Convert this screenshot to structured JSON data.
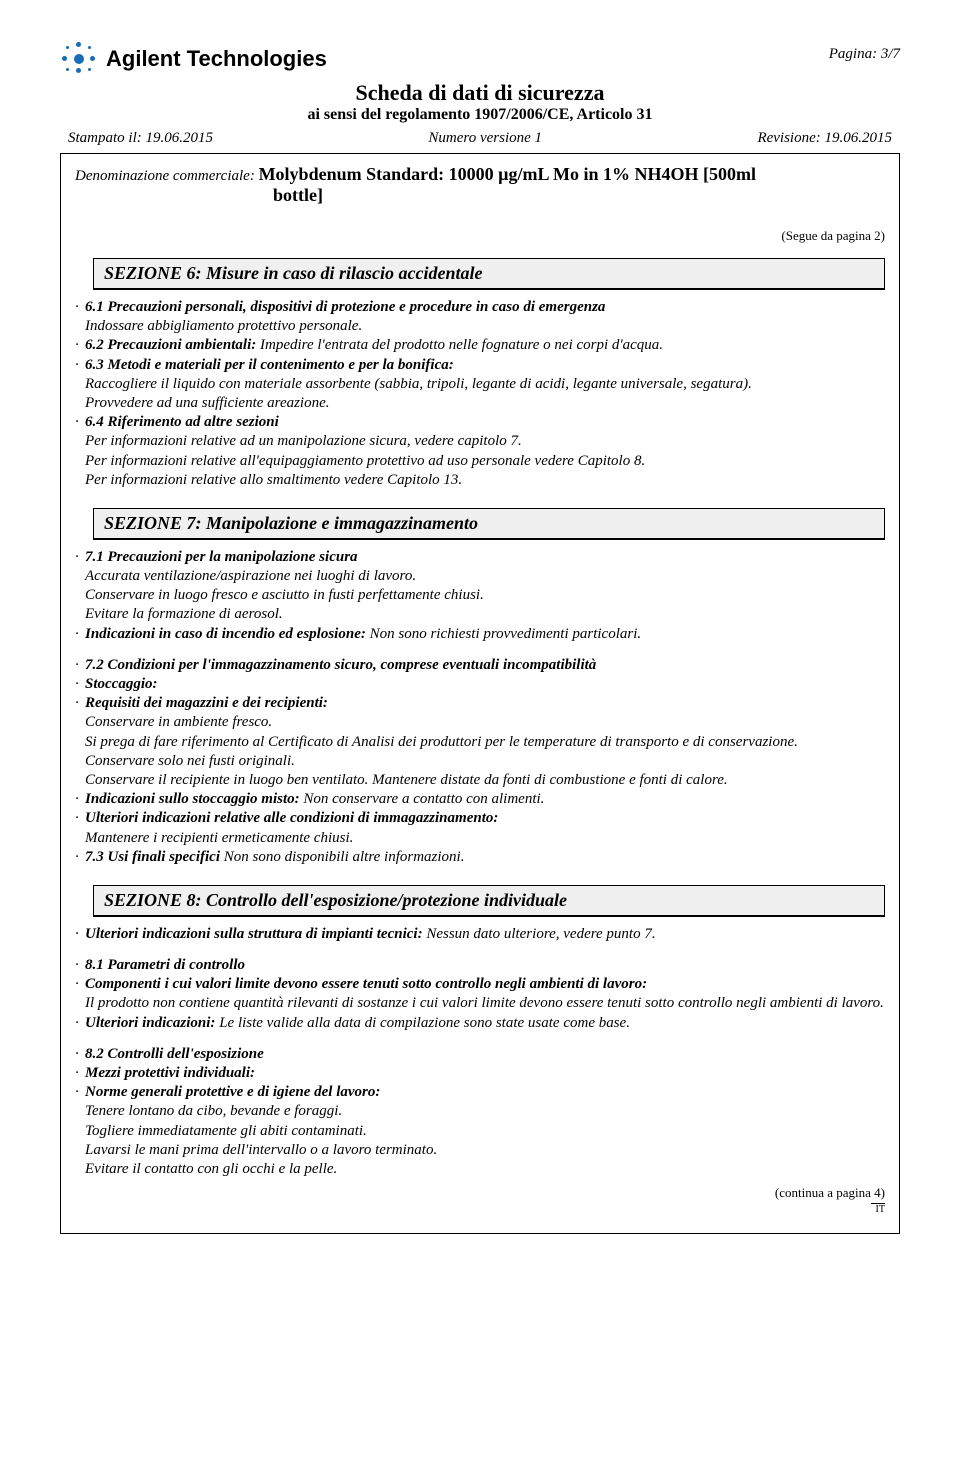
{
  "header": {
    "company": "Agilent Technologies",
    "pagina": "Pagina: 3/7",
    "title": "Scheda di dati di sicurezza",
    "subtitle": "ai sensi del regolamento 1907/2006/CE, Articolo 31",
    "stampato_label": "Stampato il: 19.06.2015",
    "versione": "Numero versione 1",
    "revisione": "Revisione: 19.06.2015"
  },
  "denom": {
    "label": "Denominazione commerciale:",
    "value1": "Molybdenum Standard: 10000 µg/mL Mo in 1% NH4OH [500ml",
    "value2": "bottle]"
  },
  "segue": "(Segue da pagina 2)",
  "s6": {
    "title": "SEZIONE 6: Misure in caso di rilascio accidentale",
    "p1_label": "6.1 Precauzioni personali, dispositivi di protezione e procedure in caso di emergenza",
    "p1_text": "Indossare abbigliamento protettivo personale.",
    "p2_label": "6.2 Precauzioni ambientali:",
    "p2_text": "Impedire l'entrata del prodotto nelle fognature o nei corpi d'acqua.",
    "p3_label": "6.3 Metodi e materiali per il contenimento e per la bonifica:",
    "p3_text1": "Raccogliere il liquido con materiale assorbente (sabbia, tripoli, legante di acidi, legante universale, segatura).",
    "p3_text2": "Provvedere ad una sufficiente areazione.",
    "p4_label": "6.4 Riferimento ad altre sezioni",
    "p4_text1": "Per informazioni relative ad un manipolazione sicura, vedere capitolo 7.",
    "p4_text2": "Per informazioni relative all'equipaggiamento protettivo ad uso personale vedere Capitolo 8.",
    "p4_text3": "Per informazioni relative allo smaltimento vedere Capitolo 13."
  },
  "s7": {
    "title": "SEZIONE 7: Manipolazione e immagazzinamento",
    "p1_label": "7.1 Precauzioni per la manipolazione sicura",
    "p1_t1": "Accurata ventilazione/aspirazione nei luoghi di lavoro.",
    "p1_t2": "Conservare in luogo fresco e asciutto in fusti perfettamente chiusi.",
    "p1_t3": "Evitare la formazione di aerosol.",
    "p2_label": "Indicazioni in caso di incendio ed esplosione:",
    "p2_text": "Non sono richiesti provvedimenti particolari.",
    "p3_label": "7.2 Condizioni per l'immagazzinamento sicuro, comprese eventuali incompatibilità",
    "p4_label": "Stoccaggio:",
    "p5_label": "Requisiti dei magazzini e dei recipienti:",
    "p5_t1": "Conservare in ambiente fresco.",
    "p5_t2": "Si prega di fare riferimento al Certificato di Analisi dei produttori per le temperature di transporto e di conservazione.",
    "p5_t3": "Conservare solo nei fusti originali.",
    "p5_t4": "Conservare il recipiente in luogo ben ventilato. Mantenere distate da fonti di combustione e fonti di calore.",
    "p6_label": "Indicazioni sullo stoccaggio misto:",
    "p6_text": "Non conservare a contatto con alimenti.",
    "p7_label": "Ulteriori indicazioni relative alle condizioni di immagazzinamento:",
    "p7_text": "Mantenere i recipienti ermeticamente chiusi.",
    "p8_label": "7.3 Usi finali specifici",
    "p8_text": "Non sono disponibili altre informazioni."
  },
  "s8": {
    "title": "SEZIONE 8: Controllo dell'esposizione/protezione individuale",
    "p1_label": "Ulteriori indicazioni sulla struttura di impianti tecnici:",
    "p1_text": "Nessun dato ulteriore, vedere punto 7.",
    "p2_label": "8.1 Parametri di controllo",
    "p3_label": "Componenti i cui valori limite devono essere tenuti sotto controllo negli ambienti di lavoro:",
    "p3_text": "Il prodotto non contiene quantità rilevanti di sostanze i cui valori limite devono essere tenuti sotto controllo negli ambienti di lavoro.",
    "p4_label": "Ulteriori indicazioni:",
    "p4_text": "Le liste valide alla data di compilazione sono state usate come base.",
    "p5_label": "8.2 Controlli dell'esposizione",
    "p6_label": "Mezzi protettivi individuali:",
    "p7_label": "Norme generali protettive e di igiene del lavoro:",
    "p7_t1": "Tenere lontano da cibo, bevande e foraggi.",
    "p7_t2": "Togliere immediatamente gli abiti contaminati.",
    "p7_t3": "Lavarsi le mani prima dell'intervallo o a lavoro terminato.",
    "p7_t4": "Evitare il contatto con gli occhi e la pelle."
  },
  "cont": "(continua a pagina 4)",
  "lang": "IT"
}
